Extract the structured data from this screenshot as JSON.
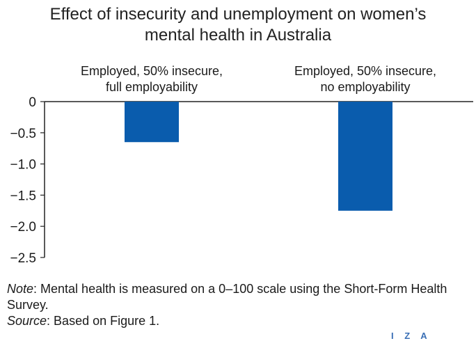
{
  "title": {
    "line1": "Effect of insecurity and unemployment on women’s",
    "line2": "mental health in Australia"
  },
  "chart_data": {
    "type": "bar",
    "categories": [
      [
        "Employed, 50% insecure,",
        "full employability"
      ],
      [
        "Employed, 50% insecure,",
        "no employability"
      ]
    ],
    "values": [
      -0.65,
      -1.75
    ],
    "ylim": [
      -2.5,
      0
    ],
    "yticks": [
      0,
      -0.5,
      -1.0,
      -1.5,
      -2.0,
      -2.5
    ],
    "ytick_labels": [
      "0",
      "−0.5",
      "−1.0",
      "−1.5",
      "−2.0",
      "−2.5"
    ],
    "category_labels_position": "top",
    "bar_color": "#0a5cad",
    "grid": false
  },
  "notes": {
    "note_label": "Note",
    "note_text": ": Mental health is measured on a 0–100 scale using the Short-Form Health Survey.",
    "source_label": "Source",
    "source_text": ": Based on Figure 1."
  },
  "logo_text": "I Z A"
}
